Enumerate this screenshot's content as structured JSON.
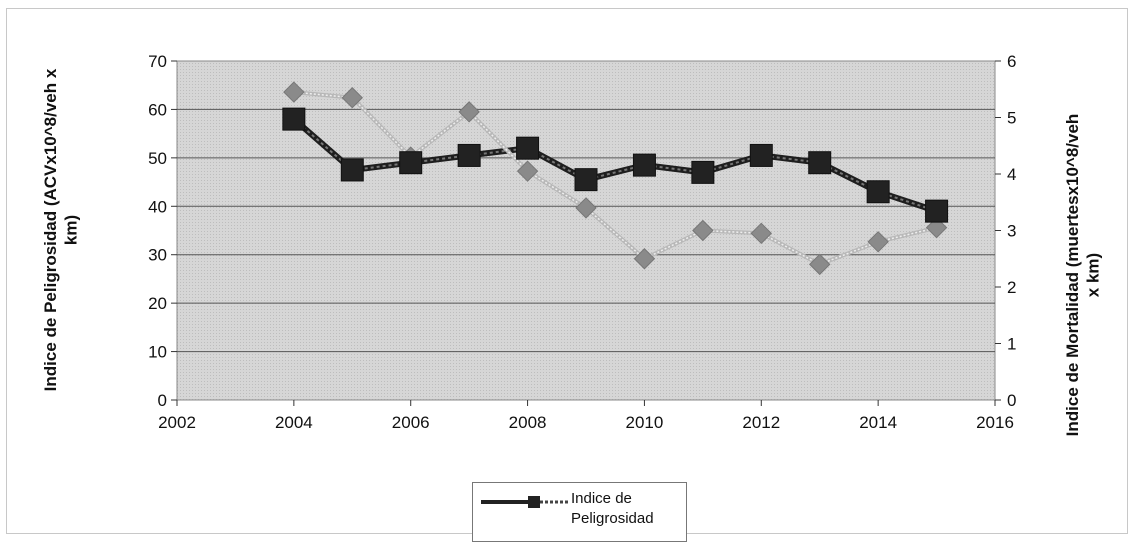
{
  "chart_data": {
    "type": "line",
    "x": [
      2004,
      2005,
      2006,
      2007,
      2008,
      2009,
      2010,
      2011,
      2012,
      2013,
      2014,
      2015
    ],
    "xlim": [
      2002,
      2016
    ],
    "x_ticks": [
      "2002",
      "2004",
      "2006",
      "2008",
      "2010",
      "2012",
      "2014",
      "2016"
    ],
    "ylabel_left": "Indice de Peligrosidad (ACVx10^8/veh x km)",
    "ylabel_right": "Indice de Mortalidad (muertesx10^8/veh x km)",
    "ylim_left": [
      0,
      70
    ],
    "ylim_right": [
      0,
      6
    ],
    "y_ticks_left": [
      "0",
      "10",
      "20",
      "30",
      "40",
      "50",
      "60",
      "70"
    ],
    "y_ticks_right": [
      "0",
      "1",
      "2",
      "3",
      "4",
      "5",
      "6"
    ],
    "grid": true,
    "legend_position": "bottom",
    "series": [
      {
        "name": "Indice de Peligrosidad",
        "axis": "left",
        "marker": "square",
        "color": "#222222",
        "values": [
          58,
          47.5,
          49,
          50.5,
          52,
          45.5,
          48.5,
          47,
          50.5,
          49,
          43,
          39
        ]
      },
      {
        "axis": "right",
        "marker": "diamond",
        "color": "#999999",
        "values": [
          5.45,
          5.35,
          4.3,
          5.1,
          4.05,
          3.4,
          2.5,
          3.0,
          2.95,
          2.4,
          2.8,
          3.05
        ]
      }
    ]
  },
  "legend": {
    "label": "Indice de\nPeligrosidad"
  }
}
